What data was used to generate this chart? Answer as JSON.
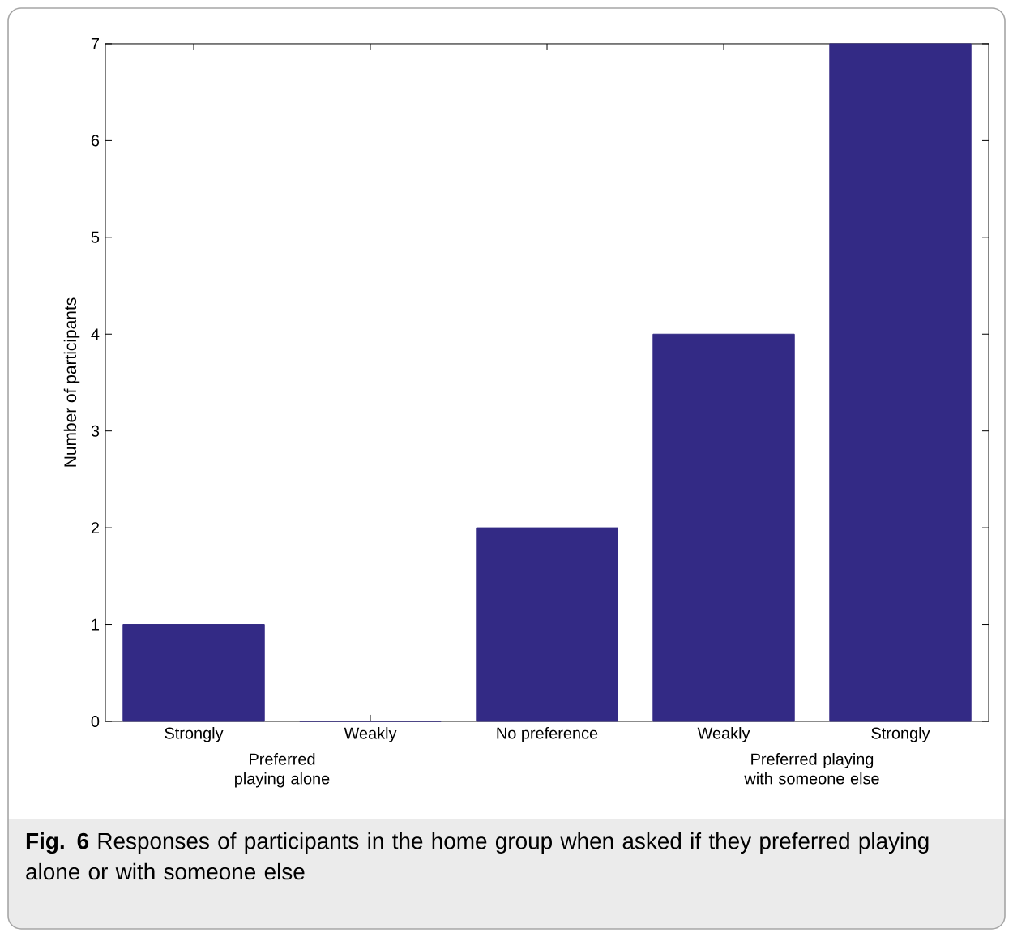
{
  "chart_data": {
    "type": "bar",
    "ylabel": "Number of participants",
    "categories": [
      "Strongly",
      "Weakly",
      "No preference",
      "Weakly",
      "Strongly"
    ],
    "values": [
      1,
      0,
      2,
      4,
      7
    ],
    "color": "#332a85",
    "ylim": [
      0,
      7
    ],
    "yticks": [
      0,
      1,
      2,
      3,
      4,
      5,
      6,
      7
    ],
    "annotations": [
      "Preferred playing alone",
      "Preferred playing with someone else",
      "**Fig. 6** Responses of participants in the home group when asked if they preferred playing alone or with someone else"
    ]
  }
}
